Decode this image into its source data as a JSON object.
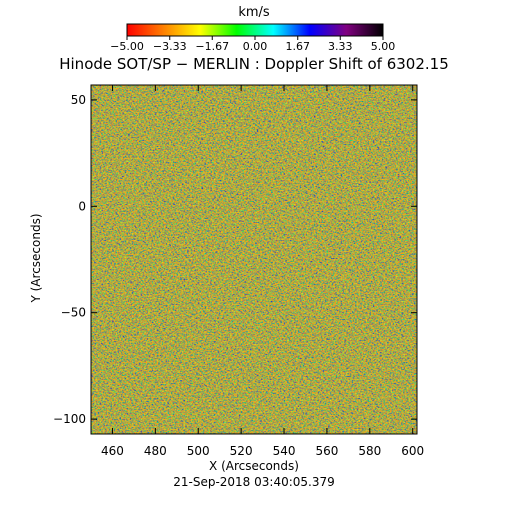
{
  "colorbar": {
    "unit": "km/s",
    "tick_labels": [
      "−5.00",
      "−3.33",
      "−1.67",
      "0.00",
      "1.67",
      "3.33",
      "5.00"
    ],
    "tick_values": [
      -5.0,
      -3.33,
      -1.67,
      0.0,
      1.67,
      3.33,
      5.0
    ],
    "range": [
      -5.0,
      5.0
    ],
    "color_stops": [
      "#ff0000",
      "#ff8000",
      "#ffff00",
      "#00ff00",
      "#00ffff",
      "#0000ff",
      "#800080",
      "#000000"
    ]
  },
  "date_label": "21-Sep-2018 03:40:05.379",
  "chart_data": {
    "type": "heatmap",
    "title": "Hinode SOT/SP − MERLIN : Doppler Shift of 6302.15",
    "xlabel": "X (Arcseconds)",
    "ylabel": "Y (Arcseconds)",
    "xlim": [
      450,
      602
    ],
    "ylim": [
      -107,
      57
    ],
    "x_ticks": [
      460,
      480,
      500,
      520,
      540,
      560,
      580,
      600
    ],
    "y_ticks": [
      50,
      0,
      -50,
      -100
    ],
    "value_unit": "km/s",
    "value_range": [
      -5.0,
      5.0
    ],
    "dominant_color": "#22dd55",
    "speckle_colors": [
      "#00e0c8",
      "#1a2ce0",
      "#e8e020",
      "#ff9a10"
    ]
  }
}
